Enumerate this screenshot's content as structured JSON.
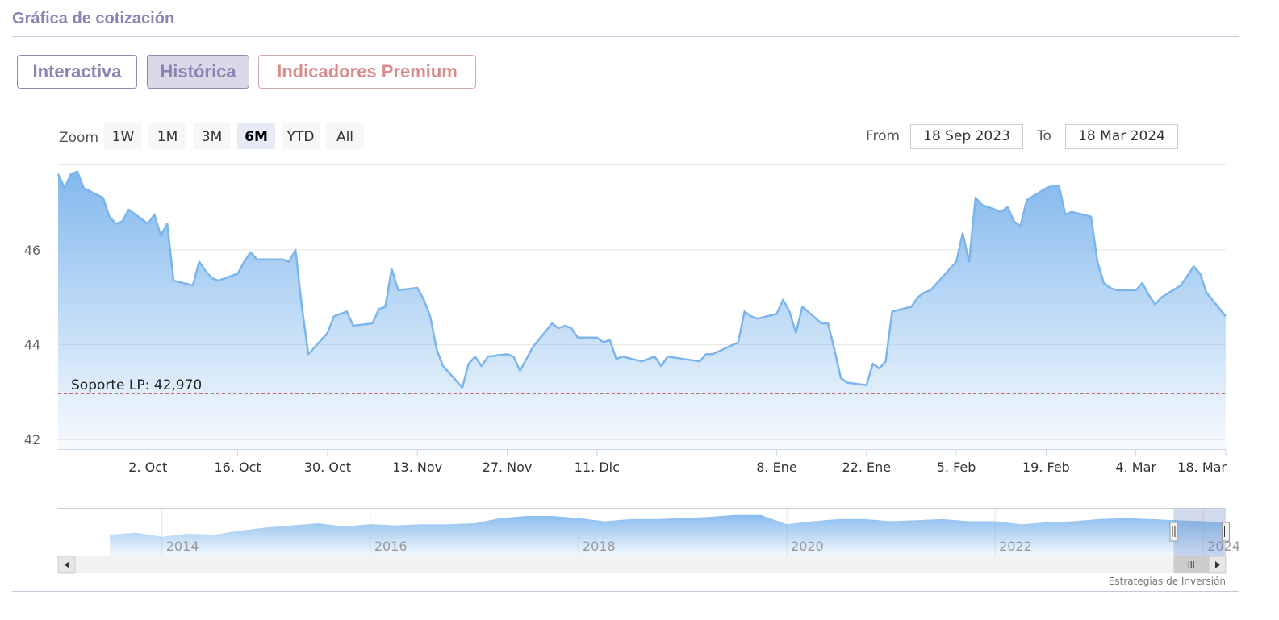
{
  "section": {
    "title": "Gráfica de cotización"
  },
  "tabs": [
    {
      "label": "Interactiva",
      "active": false
    },
    {
      "label": "Histórica",
      "active": true
    },
    {
      "label": "Indicadores Premium",
      "active": false
    }
  ],
  "range_selector": {
    "zoom_label": "Zoom",
    "buttons": [
      "1W",
      "1M",
      "3M",
      "6M",
      "YTD",
      "All"
    ],
    "selected": "6M",
    "from_label": "From",
    "from_value": "18 Sep 2023",
    "to_label": "To",
    "to_value": "18 Mar 2024"
  },
  "credit": "Estrategias de Inversión",
  "chart_data": {
    "type": "area",
    "ylim": [
      41.8,
      47.8
    ],
    "yticks": [
      "42",
      "44",
      "46"
    ],
    "xlim": [
      "2023-09-18",
      "2024-03-18"
    ],
    "x_ticks": [
      {
        "date": "2023-10-02",
        "label": "2. Oct"
      },
      {
        "date": "2023-10-16",
        "label": "16. Oct"
      },
      {
        "date": "2023-10-30",
        "label": "30. Oct"
      },
      {
        "date": "2023-11-13",
        "label": "13. Nov"
      },
      {
        "date": "2023-11-27",
        "label": "27. Nov"
      },
      {
        "date": "2023-12-11",
        "label": "11. Dic"
      },
      {
        "date": "2024-01-08",
        "label": "8. Ene"
      },
      {
        "date": "2024-01-22",
        "label": "22. Ene"
      },
      {
        "date": "2024-02-05",
        "label": "5. Feb"
      },
      {
        "date": "2024-02-19",
        "label": "19. Feb"
      },
      {
        "date": "2024-03-04",
        "label": "4. Mar"
      },
      {
        "date": "2024-03-18",
        "label": "18. Mar"
      }
    ],
    "series": [
      {
        "x": [
          "2023-09-18",
          "2023-09-19",
          "2023-09-20",
          "2023-09-21",
          "2023-09-22",
          "2023-09-25",
          "2023-09-26",
          "2023-09-27",
          "2023-09-28",
          "2023-09-29",
          "2023-10-02",
          "2023-10-03",
          "2023-10-04",
          "2023-10-05",
          "2023-10-06",
          "2023-10-09",
          "2023-10-10",
          "2023-10-11",
          "2023-10-12",
          "2023-10-13",
          "2023-10-16",
          "2023-10-17",
          "2023-10-18",
          "2023-10-19",
          "2023-10-20",
          "2023-10-23",
          "2023-10-24",
          "2023-10-25",
          "2023-10-26",
          "2023-10-27",
          "2023-10-30",
          "2023-10-31",
          "2023-11-01",
          "2023-11-02",
          "2023-11-03",
          "2023-11-06",
          "2023-11-07",
          "2023-11-08",
          "2023-11-09",
          "2023-11-10",
          "2023-11-13",
          "2023-11-14",
          "2023-11-15",
          "2023-11-16",
          "2023-11-17",
          "2023-11-20",
          "2023-11-21",
          "2023-11-22",
          "2023-11-23",
          "2023-11-24",
          "2023-11-27",
          "2023-11-28",
          "2023-11-29",
          "2023-11-30",
          "2023-12-01",
          "2023-12-04",
          "2023-12-05",
          "2023-12-06",
          "2023-12-07",
          "2023-12-08",
          "2023-12-11",
          "2023-12-12",
          "2023-12-13",
          "2023-12-14",
          "2023-12-15",
          "2023-12-18",
          "2023-12-19",
          "2023-12-20",
          "2023-12-21",
          "2023-12-22",
          "2023-12-27",
          "2023-12-28",
          "2023-12-29",
          "2024-01-02",
          "2024-01-03",
          "2024-01-04",
          "2024-01-05",
          "2024-01-08",
          "2024-01-09",
          "2024-01-10",
          "2024-01-11",
          "2024-01-12",
          "2024-01-15",
          "2024-01-16",
          "2024-01-17",
          "2024-01-18",
          "2024-01-19",
          "2024-01-22",
          "2024-01-23",
          "2024-01-24",
          "2024-01-25",
          "2024-01-26",
          "2024-01-29",
          "2024-01-30",
          "2024-01-31",
          "2024-02-01",
          "2024-02-02",
          "2024-02-05",
          "2024-02-06",
          "2024-02-07",
          "2024-02-08",
          "2024-02-09",
          "2024-02-12",
          "2024-02-13",
          "2024-02-14",
          "2024-02-15",
          "2024-02-16",
          "2024-02-19",
          "2024-02-20",
          "2024-02-21",
          "2024-02-22",
          "2024-02-23",
          "2024-02-26",
          "2024-02-27",
          "2024-02-28",
          "2024-02-29",
          "2024-03-01",
          "2024-03-04",
          "2024-03-05",
          "2024-03-06",
          "2024-03-07",
          "2024-03-08",
          "2024-03-11",
          "2024-03-12",
          "2024-03-13",
          "2024-03-14",
          "2024-03-15",
          "2024-03-18"
        ],
        "y": [
          47.6,
          47.3,
          47.6,
          47.65,
          47.3,
          47.1,
          46.7,
          46.55,
          46.6,
          46.85,
          46.55,
          46.75,
          46.3,
          46.55,
          45.35,
          45.25,
          45.75,
          45.55,
          45.4,
          45.35,
          45.5,
          45.75,
          45.95,
          45.8,
          45.8,
          45.8,
          45.75,
          46.0,
          44.8,
          43.8,
          44.25,
          44.6,
          44.65,
          44.7,
          44.4,
          44.45,
          44.75,
          44.8,
          45.6,
          45.15,
          45.2,
          44.95,
          44.6,
          43.9,
          43.55,
          43.1,
          43.6,
          43.75,
          43.55,
          43.75,
          43.8,
          43.75,
          43.45,
          43.7,
          43.95,
          44.45,
          44.35,
          44.4,
          44.35,
          44.15,
          44.15,
          44.05,
          44.1,
          43.7,
          43.75,
          43.65,
          43.7,
          43.75,
          43.55,
          43.75,
          43.65,
          43.8,
          43.8,
          44.05,
          44.7,
          44.6,
          44.55,
          44.65,
          44.95,
          44.7,
          44.25,
          44.8,
          44.45,
          44.45,
          43.9,
          43.3,
          43.2,
          43.15,
          43.6,
          43.5,
          43.65,
          44.7,
          44.8,
          45.0,
          45.1,
          45.15,
          45.3,
          45.75,
          46.35,
          45.75,
          47.1,
          46.95,
          46.8,
          46.9,
          46.6,
          46.5,
          47.05,
          47.3,
          47.35,
          47.35,
          46.75,
          46.8,
          46.7,
          45.75,
          45.3,
          45.2,
          45.15,
          45.15,
          45.3,
          45.05,
          44.85,
          45.0,
          45.25,
          45.45,
          45.65,
          45.5,
          45.1,
          44.6
        ]
      }
    ],
    "annotations": [
      {
        "type": "support-line",
        "value": 42.97,
        "label": "Soporte LP: 42,970"
      }
    ],
    "navigator": {
      "xlim": [
        "2013-01-01",
        "2024-03-18"
      ],
      "tick_labels": [
        "2014",
        "2016",
        "2018",
        "2020",
        "2022",
        "2024"
      ],
      "tick_years": [
        2014,
        2016,
        2018,
        2020,
        2022,
        2024
      ],
      "series_x": [
        2013.5,
        2013.75,
        2014,
        2014.25,
        2014.5,
        2014.75,
        2015,
        2015.25,
        2015.5,
        2015.75,
        2016,
        2016.25,
        2016.5,
        2016.75,
        2017,
        2017.25,
        2017.5,
        2017.75,
        2018,
        2018.25,
        2018.5,
        2018.75,
        2019,
        2019.25,
        2019.5,
        2019.75,
        2020,
        2020.25,
        2020.5,
        2020.75,
        2021,
        2021.25,
        2021.5,
        2021.75,
        2022,
        2022.25,
        2022.5,
        2022.75,
        2023,
        2023.25,
        2023.5,
        2023.75,
        2024,
        2024.2
      ],
      "series_y": [
        20,
        22,
        18,
        21,
        20,
        24,
        27,
        29,
        31,
        28,
        30,
        29,
        30,
        30,
        31,
        36,
        38,
        38,
        36,
        33,
        35,
        35,
        36,
        37,
        39,
        39,
        30,
        33,
        35,
        35,
        33,
        34,
        35,
        33,
        33,
        30,
        32,
        33,
        35,
        36,
        35,
        34,
        33,
        32
      ],
      "ylim": [
        0,
        45
      ],
      "selected": [
        "2023-09-18",
        "2024-03-18"
      ]
    },
    "colors": {
      "line": "#7cb5ec",
      "support": "#b22222"
    }
  }
}
